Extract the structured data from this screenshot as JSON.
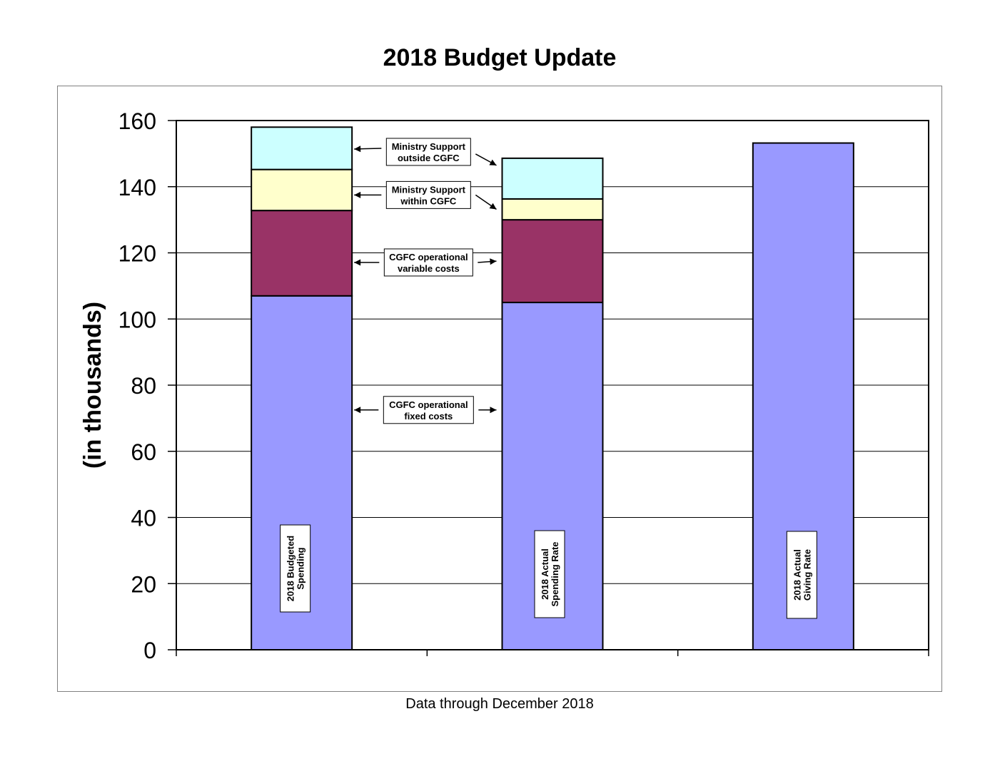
{
  "chart_data": {
    "type": "bar",
    "stacked": true,
    "title": "2018 Budget Update",
    "ylabel": "(in thousands)",
    "xlabel": "",
    "ylim": [
      0,
      160
    ],
    "yticks": [
      "0",
      "20",
      "40",
      "60",
      "80",
      "100",
      "120",
      "140",
      "160"
    ],
    "grid": true,
    "categories": [
      "2018  Budgeted Spending",
      "2018 Actual Spending Rate",
      "2018 Actual Giving Rate"
    ],
    "series": [
      {
        "name": "CGFC operational fixed costs",
        "color": "#9999ff",
        "values": [
          107,
          105,
          153.2
        ]
      },
      {
        "name": "CGFC operational variable costs",
        "color": "#993366",
        "values": [
          25.8,
          25,
          0
        ]
      },
      {
        "name": "Ministry Support within  CGFC",
        "color": "#ffffcc",
        "values": [
          12.4,
          6.3,
          0
        ]
      },
      {
        "name": "Ministry Support outside CGFC",
        "color": "#ccffff",
        "values": [
          12.8,
          12.3,
          0
        ]
      }
    ],
    "bar_labels": [
      [
        "2018  Budgeted",
        "Spending"
      ],
      [
        "2018 Actual",
        "Spending Rate"
      ],
      [
        "2018 Actual",
        "Giving Rate"
      ]
    ],
    "annotations": [
      {
        "series": 3,
        "lines": [
          "Ministry Support",
          "outside CGFC"
        ]
      },
      {
        "series": 2,
        "lines": [
          "Ministry Support",
          "within  CGFC"
        ]
      },
      {
        "series": 1,
        "lines": [
          "CGFC operational",
          "variable costs"
        ]
      },
      {
        "series": 0,
        "lines": [
          "CGFC operational",
          "fixed costs"
        ]
      }
    ]
  },
  "footnote": "Data through December 2018"
}
